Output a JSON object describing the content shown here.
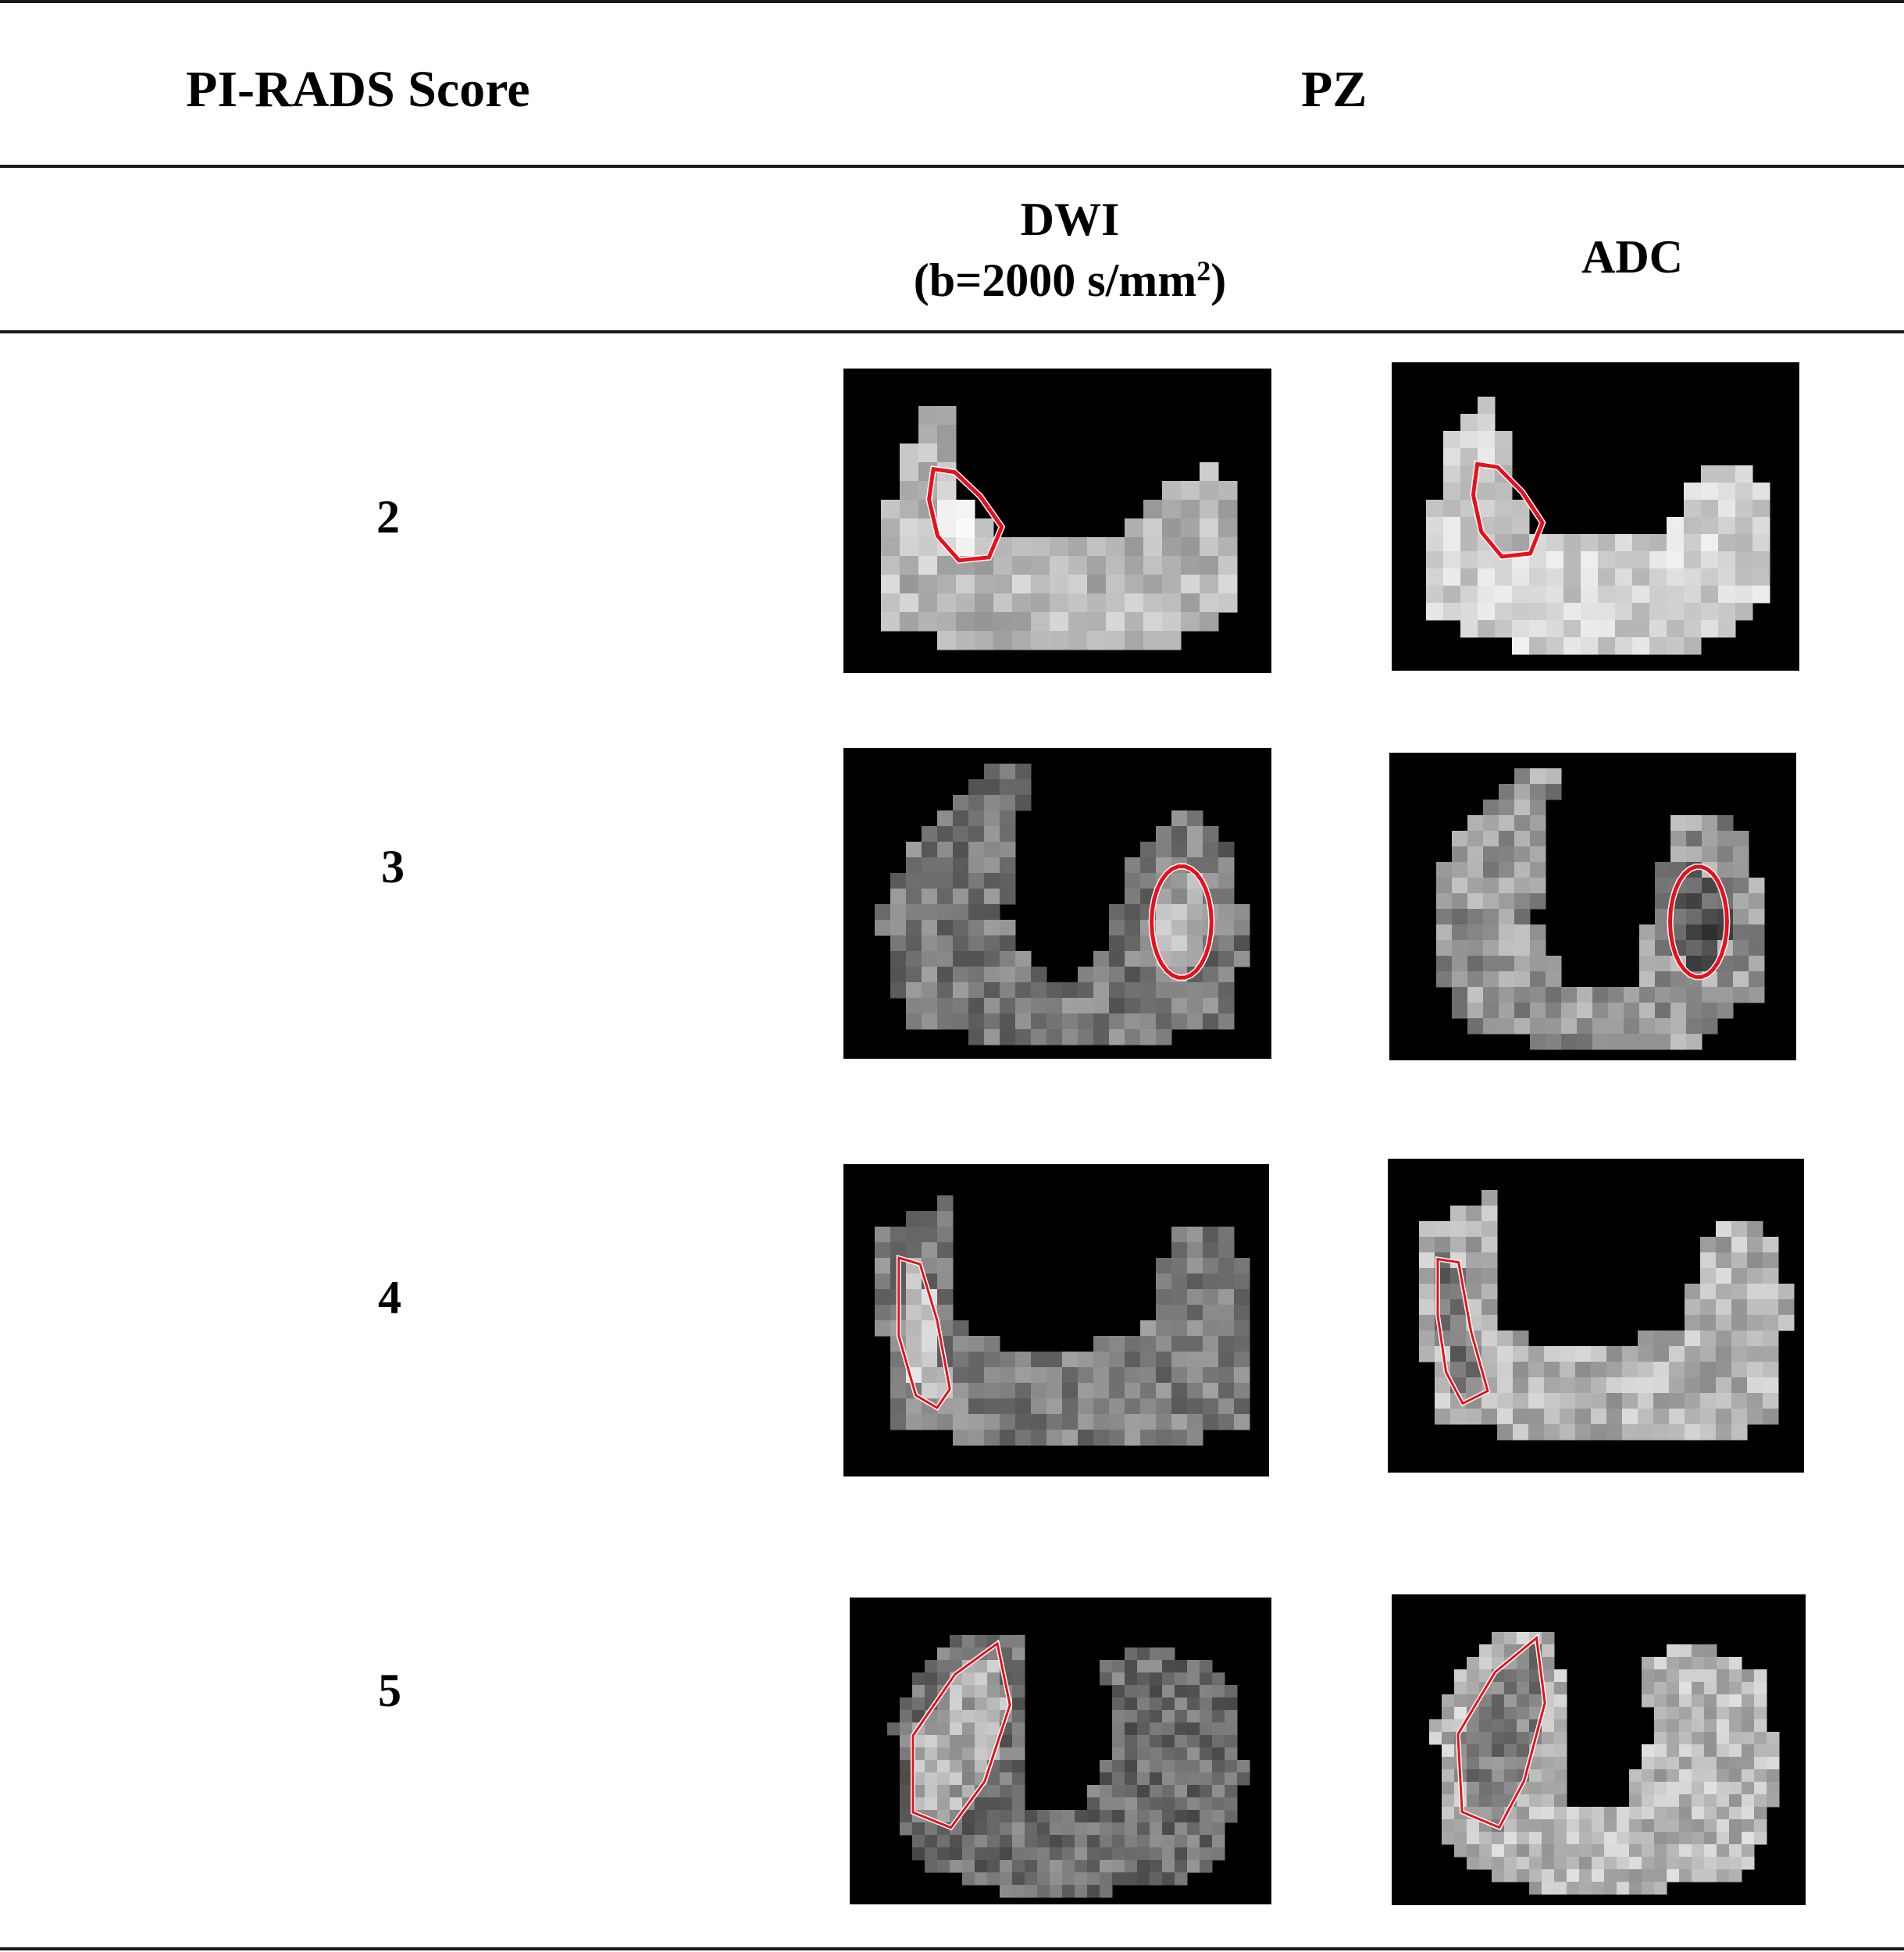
{
  "table": {
    "header": {
      "score_label": "PI-RADS Score",
      "zone_label": "PZ"
    },
    "subheader": {
      "dwi_label": "DWI",
      "dwi_param_prefix": "(b=2000 s/mm",
      "dwi_param_exp": "2",
      "dwi_param_suffix": ")",
      "adc_label": "ADC"
    },
    "rows": [
      {
        "score": "2"
      },
      {
        "score": "3"
      },
      {
        "score": "4"
      },
      {
        "score": "5"
      }
    ],
    "colors": {
      "rule": "#1a1a1a",
      "panel_bg": "#000000",
      "roi_outline": "#e8101a"
    }
  }
}
